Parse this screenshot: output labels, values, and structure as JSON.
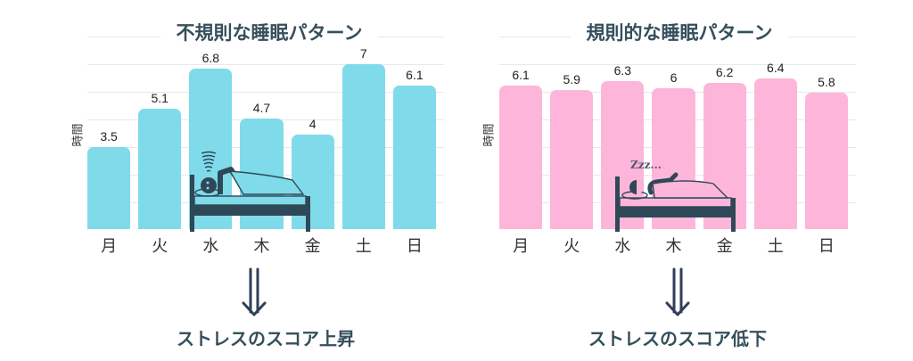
{
  "colors": {
    "irregular_bar": "#7fdbea",
    "regular_bar": "#fdb6d9",
    "text_dark": "#354f5c",
    "icon_dark": "#2f4858",
    "grid": "#e8e8e8"
  },
  "left": {
    "title": "不規則な睡眠パターン",
    "ylabel": "時間",
    "result": "ストレスのスコア上昇",
    "arrow_icon": "double-down-arrow",
    "illustration": "restless-sleeper-in-bed"
  },
  "right": {
    "title": "規則的な睡眠パターン",
    "ylabel": "時間",
    "result": "ストレスのスコア低下",
    "zzz": "Zzz...",
    "arrow_icon": "double-down-arrow",
    "illustration": "sleeping-person-in-bed"
  },
  "chart_data": [
    {
      "type": "bar",
      "title": "不規則な睡眠パターン",
      "xlabel": "",
      "ylabel": "時間",
      "categories": [
        "月",
        "火",
        "水",
        "木",
        "金",
        "土",
        "日"
      ],
      "values": [
        3.5,
        5.1,
        6.8,
        4.7,
        4,
        7,
        6.1
      ],
      "value_labels": [
        "3.5",
        "5.1",
        "6.8",
        "4.7",
        "4",
        "7",
        "6.1"
      ],
      "color": "#7fdbea",
      "grid": true,
      "legend": "none",
      "annotation": "ストレスのスコア上昇"
    },
    {
      "type": "bar",
      "title": "規則的な睡眠パターン",
      "xlabel": "",
      "ylabel": "時間",
      "categories": [
        "月",
        "火",
        "水",
        "木",
        "金",
        "土",
        "日"
      ],
      "values": [
        6.1,
        5.9,
        6.3,
        6,
        6.2,
        6.4,
        5.8
      ],
      "value_labels": [
        "6.1",
        "5.9",
        "6.3",
        "6",
        "6.2",
        "6.4",
        "5.8"
      ],
      "color": "#fdb6d9",
      "grid": true,
      "legend": "none",
      "annotation": "ストレスのスコア低下"
    }
  ]
}
